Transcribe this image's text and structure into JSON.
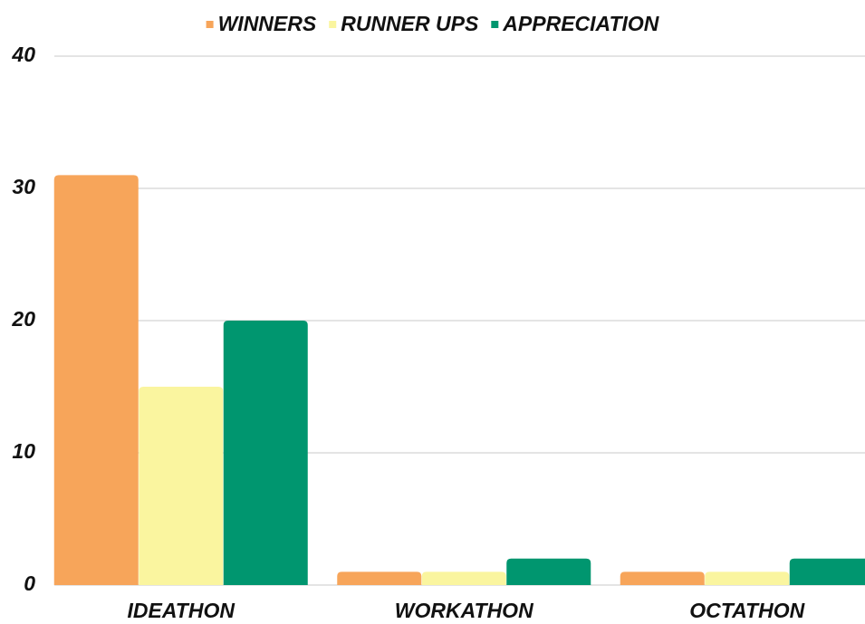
{
  "chart_data": {
    "type": "bar",
    "categories": [
      "IDEATHON",
      "WORKATHON",
      "OCTATHON"
    ],
    "series": [
      {
        "name": "WINNERS",
        "color": "#f7a55a",
        "values": [
          31,
          1,
          1
        ]
      },
      {
        "name": "RUNNER UPS",
        "color": "#faf59f",
        "values": [
          15,
          1,
          1
        ]
      },
      {
        "name": "APPRECIATION",
        "color": "#00966f",
        "values": [
          20,
          2,
          2
        ]
      }
    ],
    "ylim": [
      0,
      40
    ],
    "yticks": [
      0,
      10,
      20,
      30,
      40
    ],
    "grid": true,
    "legend": "top"
  }
}
